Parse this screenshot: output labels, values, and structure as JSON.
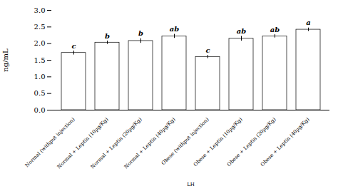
{
  "chart_data": {
    "type": "bar",
    "categories": [
      "Normal (withput injection)",
      "Normal + Leptin (10µg/Kg)",
      "Normal + Leptin (20µg/Kg)",
      "Normal + Leptin (40µg/Kg)",
      "Obese (withput injection)",
      "Obese + Leptin (10µg/Kg)",
      "Obese + Leptin (20µg/Kg)",
      "Obese + Leptin (40µg/Kg)"
    ],
    "values": [
      1.72,
      2.03,
      2.08,
      2.22,
      1.6,
      2.15,
      2.22,
      2.42
    ],
    "errors": [
      0.06,
      0.05,
      0.07,
      0.06,
      0.05,
      0.07,
      0.05,
      0.05
    ],
    "annotations": [
      "c",
      "b",
      "b",
      "ab",
      "c",
      "ab",
      "ab",
      "a"
    ],
    "xlabel": "LH",
    "ylabel": "ng/mL",
    "ylim": [
      0,
      3
    ],
    "yticks": [
      0,
      0.5,
      1,
      1.5,
      2,
      2.5,
      3
    ],
    "grid": false
  }
}
